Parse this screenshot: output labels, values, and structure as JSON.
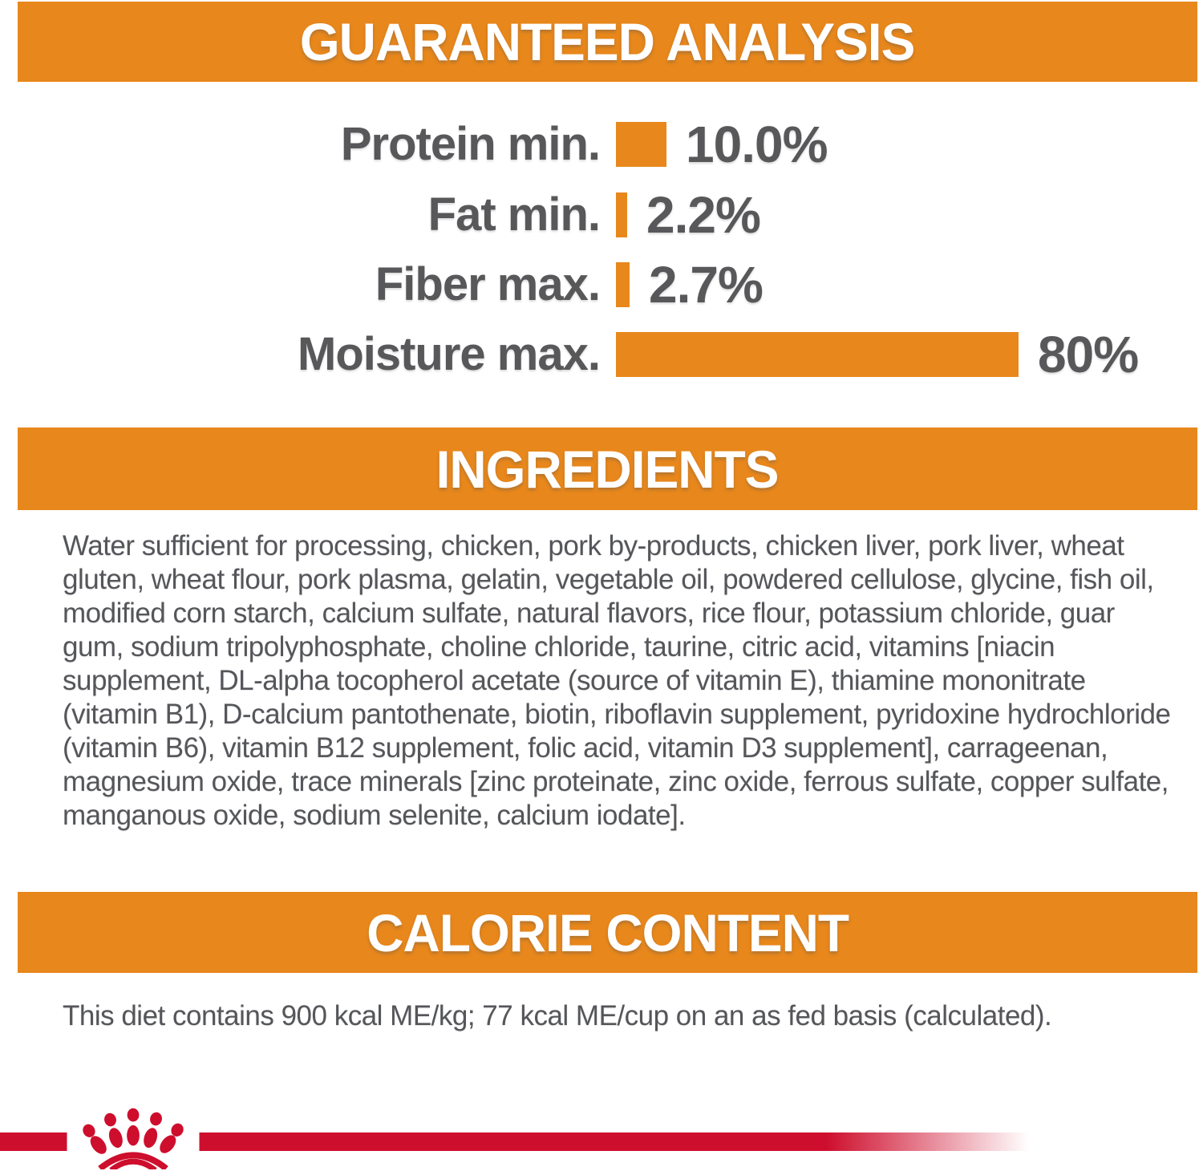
{
  "colors": {
    "orange": "#E8871B",
    "text_gray": "#58585A",
    "brand_red": "#CE0E2D",
    "background": "#FFFFFF"
  },
  "sections": {
    "guaranteed_analysis": {
      "title": "GUARANTEED ANALYSIS"
    },
    "ingredients": {
      "title": "INGREDIENTS",
      "body": "Water sufficient for processing, chicken, pork by-products, chicken liver, pork liver, wheat gluten, wheat flour, pork plasma, gelatin, vegetable oil, powdered cellulose, glycine, fish oil, modified corn starch, calcium sulfate, natural flavors, rice flour, potassium chloride, guar gum, sodium tripolyphosphate, choline chloride, taurine, citric acid, vitamins [niacin supplement, DL-alpha tocopherol acetate (source of vitamin E), thiamine mononitrate (vitamin B1), D-calcium pantothenate, biotin, riboflavin supplement, pyridoxine hydrochloride (vitamin B6), vitamin B12 supplement, folic acid, vitamin D3 supplement], carrageenan, magnesium oxide, trace minerals [zinc proteinate, zinc oxide, ferrous sulfate, copper sulfate, manganous oxide, sodium selenite, calcium iodate]."
    },
    "calorie_content": {
      "title": "CALORIE CONTENT",
      "body": "This diet contains 900 kcal ME/kg; 77 kcal ME/cup on an as fed basis (calculated)."
    }
  },
  "chart_data": {
    "type": "bar",
    "orientation": "horizontal",
    "title": "GUARANTEED ANALYSIS",
    "categories": [
      "Protein min.",
      "Fat min.",
      "Fiber max.",
      "Moisture max."
    ],
    "values": [
      10.0,
      2.2,
      2.7,
      80
    ],
    "value_labels": [
      "10.0%",
      "2.2%",
      "2.7%",
      "80%"
    ],
    "xlim": [
      0,
      80
    ],
    "bar_color": "#E8871B",
    "grid": false,
    "legend": false
  },
  "footer": {
    "brand_icon": "royal-canin-crown"
  }
}
